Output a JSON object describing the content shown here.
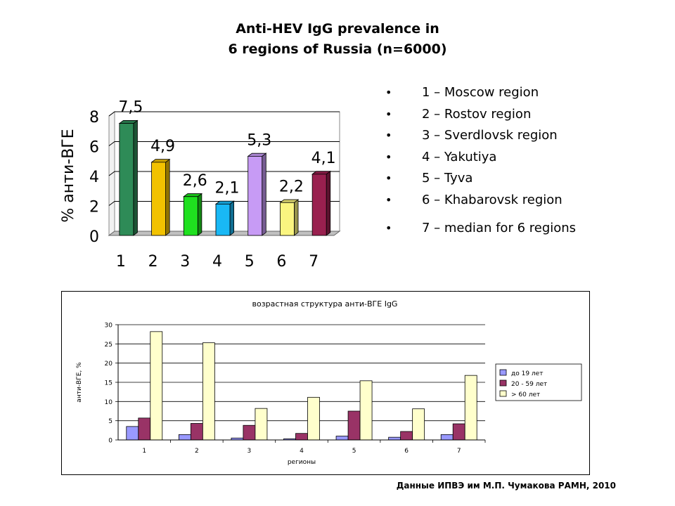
{
  "title_line1": "Anti-HEV IgG prevalence in",
  "title_line2": "6 regions of Russia (n=6000)",
  "legend_bullet": "•",
  "legend": [
    "1 – Moscow region",
    "2 – Rostov region",
    "3 – Sverdlovsk region",
    "4 – Yakutiya",
    "5 – Tyva",
    "6 – Khabarovsk region",
    "7 – median for 6 regions"
  ],
  "credit": "Данные ИПВЭ им М.П. Чумакова РАМН, 2010",
  "chart_data": [
    {
      "type": "bar",
      "title": "",
      "xlabel": "",
      "ylabel": "% анти-ВГЕ",
      "categories": [
        "1",
        "2",
        "3",
        "4",
        "5",
        "6",
        "7"
      ],
      "values": [
        7.5,
        4.9,
        2.6,
        2.1,
        5.3,
        2.2,
        4.1
      ],
      "data_labels": [
        "7,5",
        "4,9",
        "2,6",
        "2,1",
        "5,3",
        "2,2",
        "4,1"
      ],
      "ylim": [
        0,
        8
      ],
      "yticks": [
        0,
        2,
        4,
        6,
        8
      ],
      "grid": true,
      "colors": [
        "#2E8B57",
        "#F2C200",
        "#1FE01F",
        "#19B8F5",
        "#C79BF5",
        "#FAF580",
        "#99204F"
      ]
    },
    {
      "type": "bar",
      "title": "возрастная структура анти-ВГЕ IgG",
      "xlabel": "регионы",
      "ylabel": "анти-ВГЕ, %",
      "categories": [
        "1",
        "2",
        "3",
        "4",
        "5",
        "6",
        "7"
      ],
      "series": [
        {
          "name": "до 19 лет",
          "values": [
            3.5,
            1.4,
            0.5,
            0.3,
            1.0,
            0.7,
            1.4
          ],
          "color": "#9999FF"
        },
        {
          "name": "20 - 59 лет",
          "values": [
            5.7,
            4.3,
            3.8,
            1.7,
            7.5,
            2.2,
            4.2
          ],
          "color": "#993366"
        },
        {
          "name": "> 60 лет",
          "values": [
            28.2,
            25.3,
            8.2,
            11.1,
            15.4,
            8.1,
            16.8
          ],
          "color": "#FFFFCC"
        }
      ],
      "ylim": [
        0,
        30
      ],
      "yticks": [
        0,
        5,
        10,
        15,
        20,
        25,
        30
      ],
      "grid": true,
      "legend_position": "right"
    }
  ]
}
